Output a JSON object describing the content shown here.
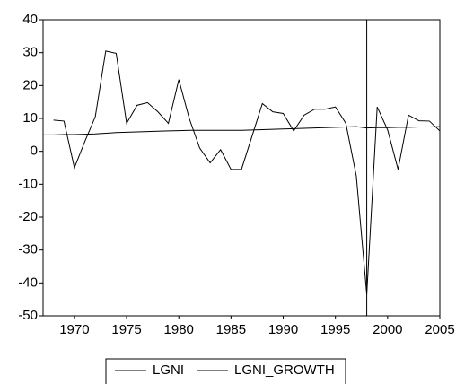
{
  "chart_data": {
    "type": "line",
    "x": [
      1967,
      1968,
      1969,
      1970,
      1971,
      1972,
      1973,
      1974,
      1975,
      1976,
      1977,
      1978,
      1979,
      1980,
      1981,
      1982,
      1983,
      1984,
      1985,
      1986,
      1987,
      1988,
      1989,
      1990,
      1991,
      1992,
      1993,
      1994,
      1995,
      1996,
      1997,
      1998,
      1999,
      2000,
      2001,
      2002,
      2003,
      2004,
      2005
    ],
    "series": [
      {
        "name": "LGNI",
        "color": "#000000",
        "values": [
          5.0,
          5.0,
          5.1,
          5.1,
          5.2,
          5.3,
          5.5,
          5.7,
          5.8,
          5.9,
          6.0,
          6.1,
          6.2,
          6.3,
          6.4,
          6.4,
          6.4,
          6.4,
          6.4,
          6.4,
          6.5,
          6.6,
          6.7,
          6.8,
          6.9,
          7.0,
          7.1,
          7.2,
          7.3,
          7.4,
          7.5,
          7.1,
          7.2,
          7.2,
          7.3,
          7.3,
          7.4,
          7.4,
          7.5
        ]
      },
      {
        "name": "LGNI_GROWTH",
        "color": "#000000",
        "values": [
          null,
          9.5,
          9.2,
          -5,
          3,
          10.5,
          30.5,
          29.8,
          8.5,
          14,
          14.8,
          12,
          8.5,
          21.8,
          10,
          1,
          -3.5,
          0.5,
          -5.5,
          -5.5,
          4.5,
          14.5,
          12,
          11.5,
          6.2,
          11,
          12.8,
          12.8,
          13.5,
          8.5,
          -7.5,
          -43.5,
          13.5,
          6.5,
          -5.5,
          11,
          9.3,
          9.2,
          6.2
        ]
      }
    ],
    "xlim": [
      1967,
      2005
    ],
    "xticks": [
      1970,
      1975,
      1980,
      1985,
      1990,
      1995,
      2000,
      2005
    ],
    "ylim": [
      -50,
      40
    ],
    "yticks": [
      -50,
      -40,
      -30,
      -20,
      -10,
      0,
      10,
      20,
      30,
      40
    ],
    "vline": 1998,
    "legend": "bottom"
  }
}
